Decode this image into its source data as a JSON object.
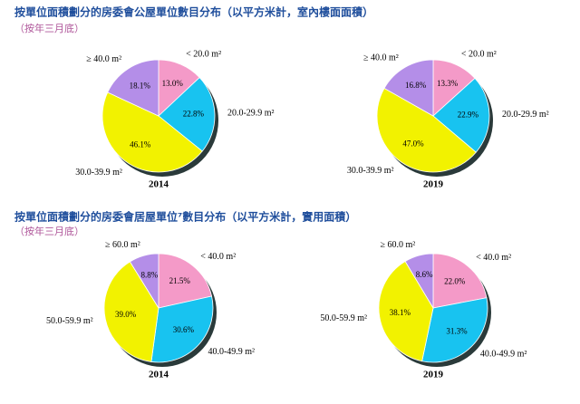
{
  "sections": [
    {
      "title": "按單位面積劃分的房委會公屋單位數目分布（以平方米計，室內樓面面積）",
      "subtitle": "（按年三月底）"
    },
    {
      "title": "按單位面積劃分的房委會居屋單位⁷數目分布（以平方米計，實用面積）",
      "subtitle": "（按年三月底）"
    }
  ],
  "chart_data": [
    {
      "type": "pie",
      "title": "2014",
      "categories": [
        "< 20.0 m²",
        "20.0-29.9 m²",
        "30.0-39.9 m²",
        "≥ 40.0 m²"
      ],
      "values": [
        13.0,
        22.8,
        46.1,
        18.1
      ],
      "value_labels": [
        "13.0%",
        "22.8%",
        "46.1%",
        "18.1%"
      ],
      "colors": [
        "#f49ac8",
        "#18c3f0",
        "#f2f200",
        "#b48ee8"
      ]
    },
    {
      "type": "pie",
      "title": "2019",
      "categories": [
        "< 20.0 m²",
        "20.0-29.9 m²",
        "30.0-39.9 m²",
        "≥ 40.0 m²"
      ],
      "values": [
        13.3,
        22.9,
        47.0,
        16.8
      ],
      "value_labels": [
        "13.3%",
        "22.9%",
        "47.0%",
        "16.8%"
      ],
      "colors": [
        "#f49ac8",
        "#18c3f0",
        "#f2f200",
        "#b48ee8"
      ]
    },
    {
      "type": "pie",
      "title": "2014",
      "categories": [
        "< 40.0 m²",
        "40.0-49.9 m²",
        "50.0-59.9 m²",
        "≥ 60.0 m²"
      ],
      "values": [
        21.5,
        30.6,
        39.0,
        8.8
      ],
      "value_labels": [
        "21.5%",
        "30.6%",
        "39.0%",
        "8.8%"
      ],
      "colors": [
        "#f49ac8",
        "#18c3f0",
        "#f2f200",
        "#b48ee8"
      ]
    },
    {
      "type": "pie",
      "title": "2019",
      "categories": [
        "< 40.0 m²",
        "40.0-49.9 m²",
        "50.0-59.9 m²",
        "≥ 60.0 m²"
      ],
      "values": [
        22.0,
        31.3,
        38.1,
        8.6
      ],
      "value_labels": [
        "22.0%",
        "31.3%",
        "38.1%",
        "8.6%"
      ],
      "colors": [
        "#f49ac8",
        "#18c3f0",
        "#f2f200",
        "#b48ee8"
      ]
    }
  ]
}
